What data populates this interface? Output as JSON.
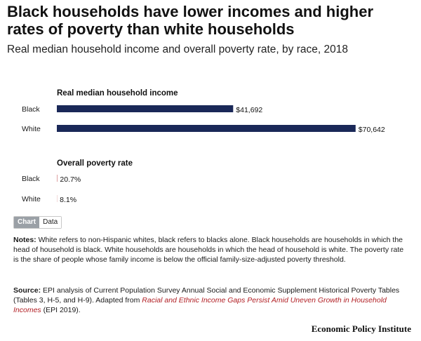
{
  "title": "Black households have lower incomes and higher rates of poverty than white households",
  "subtitle": "Real median household income and overall poverty rate, by race, 2018",
  "toggle": {
    "chart_label": "Chart",
    "data_label": "Data"
  },
  "notes": {
    "label": "Notes:",
    "text": " White refers to non-Hispanic whites, black refers to blacks alone. Black households are households in which the head of household is black. White households are households in which the head of household is white. The poverty rate is the share of people whose family income is below the official family-size-adjusted poverty threshold."
  },
  "source": {
    "label": "Source:",
    "text_before": " EPI analysis of Current Population Survey Annual Social and Economic Supplement Historical Poverty Tables (Tables 3, H-5, and H-9). Adapted from ",
    "link_text": "Racial and Ethnic Income Gaps Persist Amid Uneven Growth in Household Incomes",
    "text_after": " (EPI 2019)."
  },
  "footer": "Economic Policy Institute",
  "colors": {
    "income_bar": "#1a2858",
    "poverty_bar": "#b11f24"
  },
  "chart_data": [
    {
      "type": "bar",
      "orientation": "horizontal",
      "title": "Real median household income",
      "categories": [
        "Black",
        "White"
      ],
      "values": [
        41692,
        70642
      ],
      "value_labels": [
        "$41,692",
        "$70,642"
      ]
    },
    {
      "type": "bar",
      "orientation": "horizontal",
      "title": "Overall poverty rate",
      "categories": [
        "Black",
        "White"
      ],
      "values": [
        20.7,
        8.1
      ],
      "value_labels": [
        "20.7%",
        "8.1%"
      ]
    }
  ]
}
